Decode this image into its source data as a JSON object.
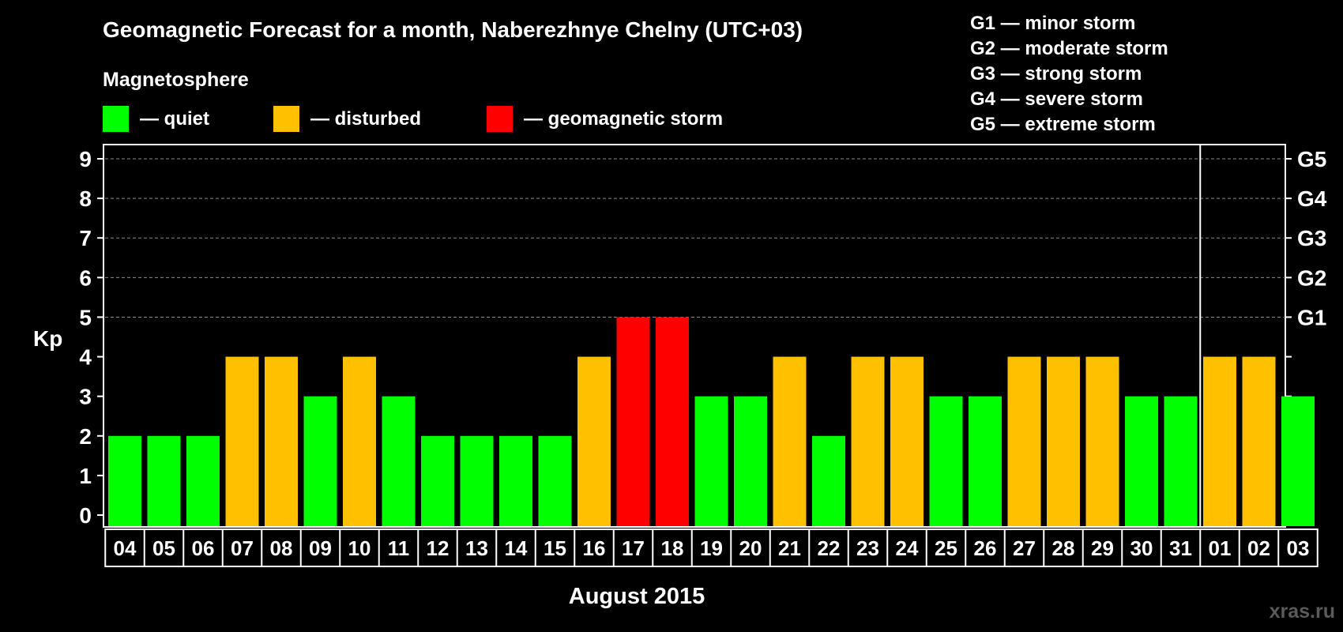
{
  "chart_data": {
    "type": "bar",
    "title": "Geomagnetic Forecast for a month, Naberezhnye Chelny (UTC+03)",
    "legend": {
      "heading": "Magnetosphere",
      "placement": "top-left",
      "entries": [
        {
          "key": "quiet",
          "label": "— quiet",
          "color": "#00ff00"
        },
        {
          "key": "disturbed",
          "label": "— disturbed",
          "color": "#ffc000"
        },
        {
          "key": "storm",
          "label": "— geomagnetic storm",
          "color": "#ff0000"
        }
      ]
    },
    "storm_scale": [
      "G1 — minor storm",
      "G2 — moderate storm",
      "G3 — strong storm",
      "G4 — severe storm",
      "G5 — extreme storm"
    ],
    "ylabel": "Kp",
    "xlabel": "August 2015",
    "ylim": [
      0,
      9
    ],
    "yticks": [
      0,
      1,
      2,
      3,
      4,
      5,
      6,
      7,
      8,
      9
    ],
    "right_ticks": [
      {
        "kp": 5,
        "label": "G1"
      },
      {
        "kp": 6,
        "label": "G2"
      },
      {
        "kp": 7,
        "label": "G3"
      },
      {
        "kp": 8,
        "label": "G4"
      },
      {
        "kp": 9,
        "label": "G5"
      }
    ],
    "grid": "dashed horizontal at Kp 5–9",
    "month_divider_after_index": 27,
    "categories": [
      "04",
      "05",
      "06",
      "07",
      "08",
      "09",
      "10",
      "11",
      "12",
      "13",
      "14",
      "15",
      "16",
      "17",
      "18",
      "19",
      "20",
      "21",
      "22",
      "23",
      "24",
      "25",
      "26",
      "27",
      "28",
      "29",
      "30",
      "31",
      "01",
      "02",
      "03"
    ],
    "values": [
      2,
      2,
      2,
      4,
      4,
      3,
      4,
      3,
      2,
      2,
      2,
      2,
      4,
      5,
      5,
      3,
      3,
      4,
      2,
      4,
      4,
      3,
      3,
      4,
      4,
      4,
      3,
      3,
      4,
      4,
      3
    ],
    "color_rule": {
      "quiet_max": 3,
      "disturbed_max": 4
    }
  },
  "watermark": "xras.ru"
}
